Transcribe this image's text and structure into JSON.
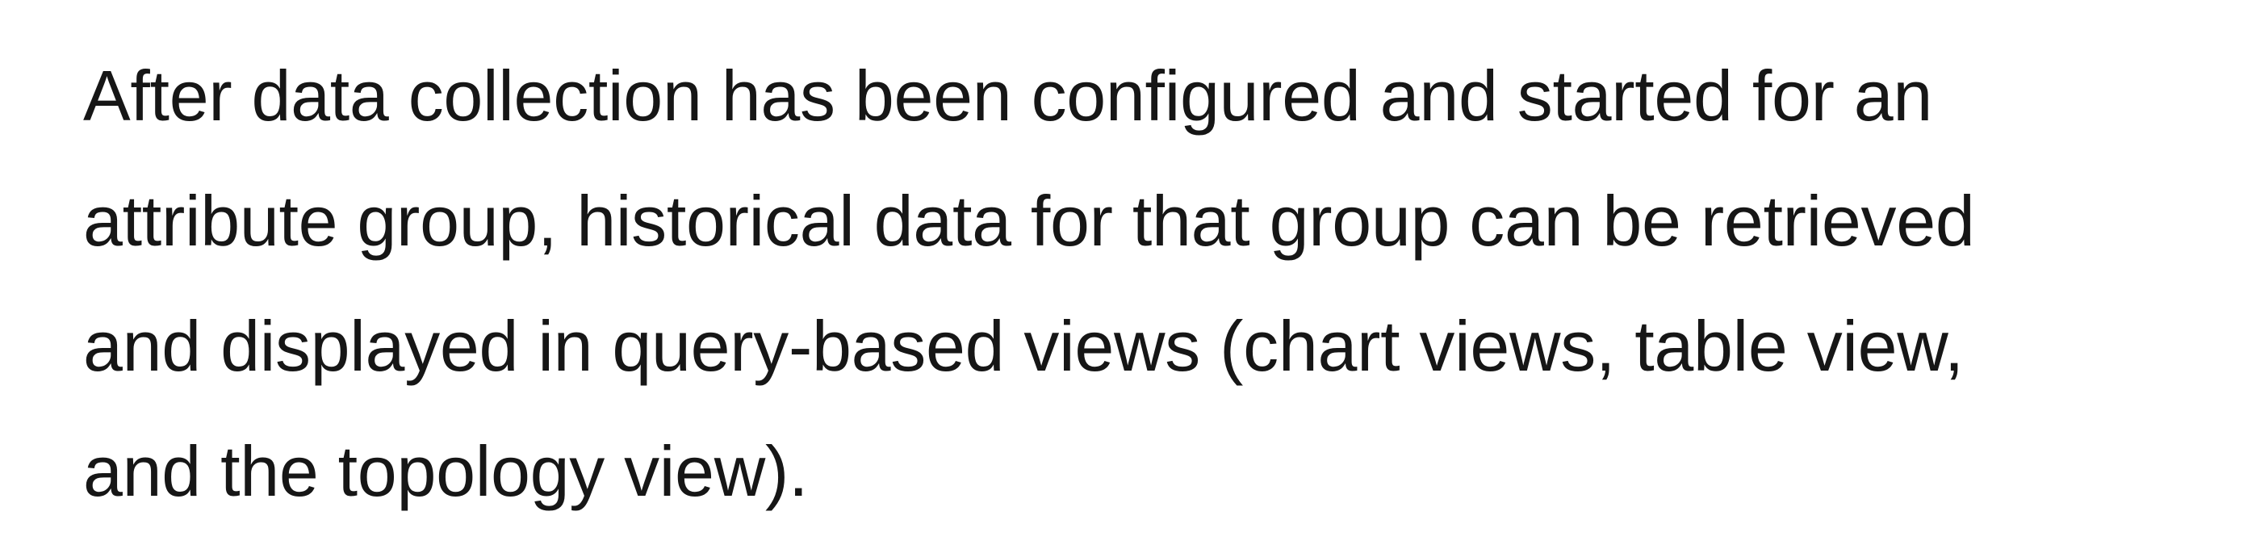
{
  "paragraph": {
    "lines": [
      "After data collection has been configured and started for an",
      "attribute group, historical data for that group can be retrieved",
      "and displayed in query-based views (chart views, table view,",
      "and the topology view)."
    ]
  },
  "colors": {
    "text": "#161616",
    "background": "#ffffff"
  }
}
